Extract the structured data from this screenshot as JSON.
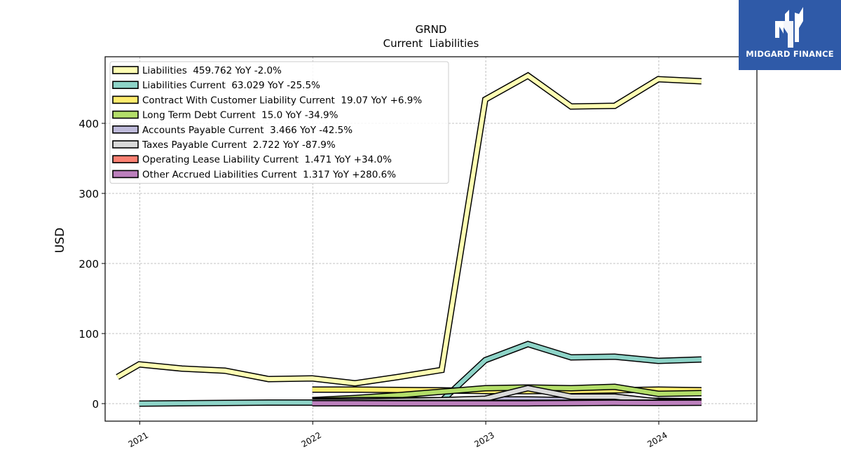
{
  "logo": {
    "text": "MIDGARD FINANCE"
  },
  "chart_data": {
    "type": "line",
    "title": "GRND",
    "subtitle": "Current  Liabilities",
    "ylabel": "USD",
    "xlabel": "",
    "xlim": [
      "2020-10-20",
      "2024-07-26"
    ],
    "ylim": [
      -25,
      495
    ],
    "yticks": [
      0,
      100,
      200,
      300,
      400
    ],
    "xticks": [
      {
        "date": "2021-01-01",
        "label": "2021"
      },
      {
        "date": "2022-01-01",
        "label": "2022"
      },
      {
        "date": "2023-01-01",
        "label": "2023"
      },
      {
        "date": "2024-01-01",
        "label": "2024"
      }
    ],
    "grid": true,
    "legend_position": "top-left",
    "series": [
      {
        "name": "Liabilities  459.762 YoY -2.0%",
        "color": "#ffffb3",
        "x": [
          "2020-11-15",
          "2020-12-31",
          "2021-03-31",
          "2021-06-30",
          "2021-09-30",
          "2021-12-31",
          "2022-03-31",
          "2022-06-30",
          "2022-09-30",
          "2022-12-31",
          "2023-03-31",
          "2023-06-30",
          "2023-09-30",
          "2023-12-31",
          "2024-03-31"
        ],
        "y": [
          38,
          56,
          50,
          47,
          35,
          36,
          29,
          38,
          48,
          434,
          468,
          424,
          425,
          463,
          460
        ]
      },
      {
        "name": "Liabilities Current  63.029 YoY -25.5%",
        "color": "#8dd3c7",
        "x": [
          "2020-12-31",
          "2021-03-31",
          "2021-06-30",
          "2021-09-30",
          "2021-12-31",
          "2022-03-31",
          "2022-06-30",
          "2022-09-30",
          "2022-12-31",
          "2023-03-31",
          "2023-06-30",
          "2023-09-30",
          "2023-12-31",
          "2024-03-31"
        ],
        "y": [
          0,
          0.5,
          1,
          1.5,
          1.5,
          2,
          3,
          4,
          62,
          85,
          66,
          67,
          61,
          63
        ]
      },
      {
        "name": "Contract With Customer Liability Current  19.07 YoY +6.9%",
        "color": "#ffed6f",
        "x": [
          "2021-12-31",
          "2022-03-31",
          "2022-06-30",
          "2022-09-30",
          "2022-12-31",
          "2023-03-31",
          "2023-06-30",
          "2023-09-30",
          "2023-12-31",
          "2024-03-31"
        ],
        "y": [
          20,
          20,
          19.5,
          19,
          18,
          17.8,
          18,
          19,
          20,
          19.07
        ]
      },
      {
        "name": "Long Term Debt Current  15.0 YoY -34.9%",
        "color": "#b3de69",
        "x": [
          "2021-12-31",
          "2022-03-31",
          "2022-06-30",
          "2022-09-30",
          "2022-12-31",
          "2023-03-31",
          "2023-06-30",
          "2023-09-30",
          "2023-12-31",
          "2024-03-31"
        ],
        "y": [
          5,
          8,
          12,
          17,
          22,
          23,
          22,
          24,
          14,
          15
        ]
      },
      {
        "name": "Accounts Payable Current  3.466 YoY -42.5%",
        "color": "#bebada",
        "x": [
          "2021-12-31",
          "2022-03-31",
          "2022-06-30",
          "2022-09-30",
          "2022-12-31",
          "2023-03-31",
          "2023-06-30",
          "2023-09-30",
          "2023-12-31",
          "2024-03-31"
        ],
        "y": [
          4,
          5,
          5,
          5,
          6,
          6,
          5,
          5,
          4,
          3.466
        ]
      },
      {
        "name": "Taxes Payable Current  2.722 YoY -87.9%",
        "color": "#d9d9d9",
        "x": [
          "2021-12-31",
          "2022-03-31",
          "2022-06-30",
          "2022-09-30",
          "2022-12-31",
          "2023-03-31",
          "2023-06-30",
          "2023-09-30",
          "2023-12-31",
          "2024-03-31"
        ],
        "y": [
          3,
          3,
          4,
          5,
          7,
          22,
          10,
          10,
          3,
          2.722
        ]
      },
      {
        "name": "Operating Lease Liability Current  1.471 YoY +34.0%",
        "color": "#fb8072",
        "x": [
          "2021-12-31",
          "2022-03-31",
          "2022-06-30",
          "2022-09-30",
          "2022-12-31",
          "2023-03-31",
          "2023-06-30",
          "2023-09-30",
          "2023-12-31",
          "2024-03-31"
        ],
        "y": [
          1,
          1,
          1,
          1,
          1.1,
          1.1,
          1.2,
          1.3,
          1.4,
          1.471
        ]
      },
      {
        "name": "Other Accrued Liabilities Current  1.317 YoY +280.6%",
        "color": "#bc80bd",
        "x": [
          "2021-12-31",
          "2022-03-31",
          "2022-06-30",
          "2022-09-30",
          "2022-12-31",
          "2023-03-31",
          "2023-06-30",
          "2023-09-30",
          "2023-12-31",
          "2024-03-31"
        ],
        "y": [
          0.5,
          0.5,
          0.4,
          0.4,
          0.35,
          0.35,
          0.8,
          1.2,
          1.0,
          1.317
        ]
      }
    ]
  }
}
